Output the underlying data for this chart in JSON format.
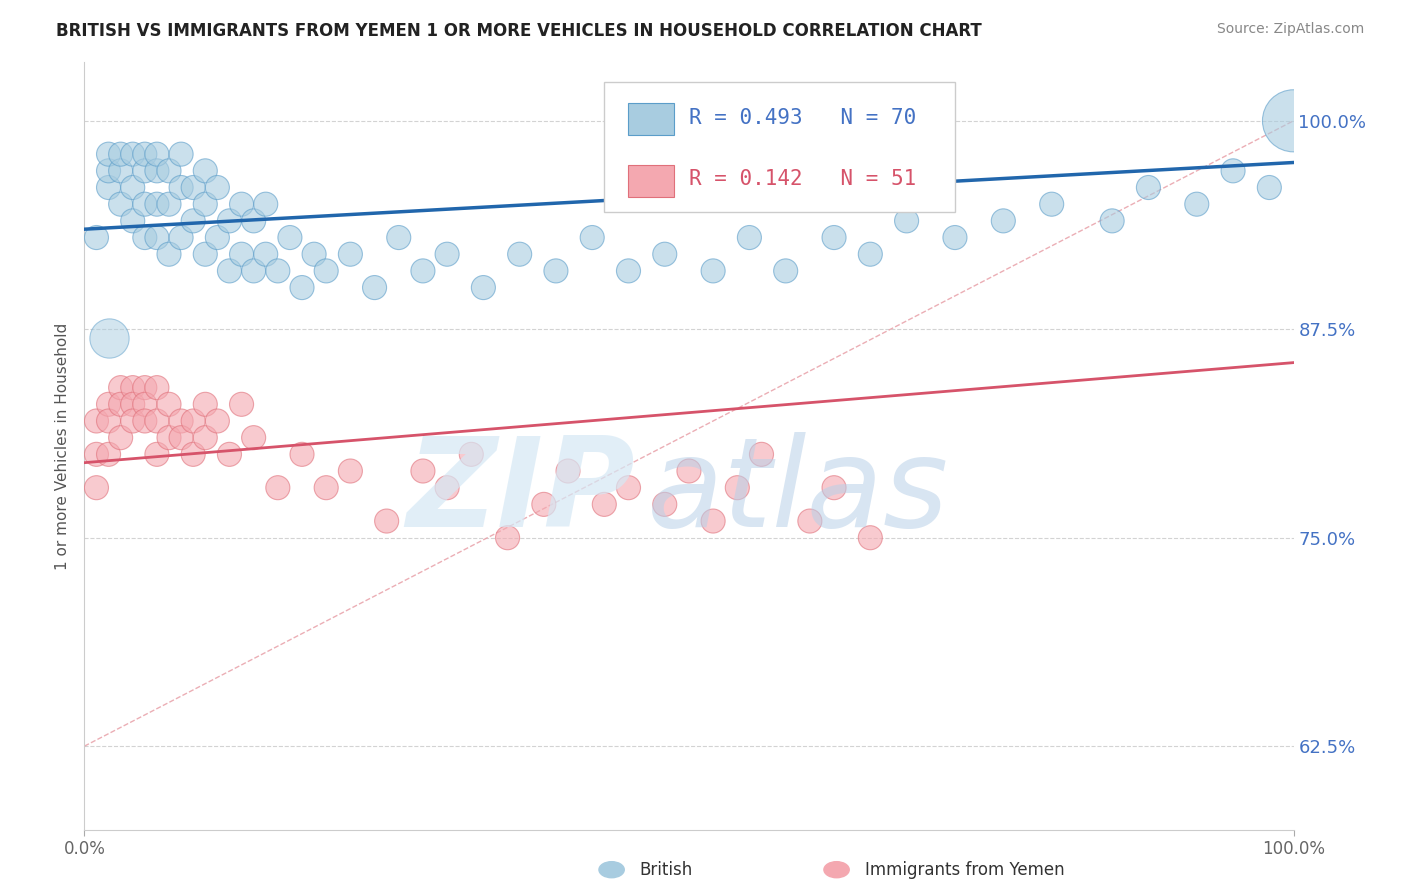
{
  "title": "BRITISH VS IMMIGRANTS FROM YEMEN 1 OR MORE VEHICLES IN HOUSEHOLD CORRELATION CHART",
  "source": "Source: ZipAtlas.com",
  "ylabel": "1 or more Vehicles in Household",
  "xlim": [
    0.0,
    1.0
  ],
  "ylim": [
    0.575,
    1.035
  ],
  "yticks": [
    0.625,
    0.75,
    0.875,
    1.0
  ],
  "ytick_labels": [
    "62.5%",
    "75.0%",
    "87.5%",
    "100.0%"
  ],
  "legend_r_blue": "R = 0.493",
  "legend_n_blue": "N = 70",
  "legend_r_pink": "R = 0.142",
  "legend_n_pink": "N = 51",
  "blue_color": "#a8cce0",
  "pink_color": "#f4a8b0",
  "blue_edge": "#5b9dc9",
  "pink_edge": "#e0707a",
  "blue_line_color": "#2166ac",
  "pink_line_color": "#d6536a",
  "ref_line_color": "#e8a0a8",
  "grid_color": "#c8c8c8",
  "title_color": "#222222",
  "source_color": "#888888",
  "tick_color_y": "#4472c4",
  "tick_color_x": "#666666",
  "british_x": [
    0.01,
    0.02,
    0.02,
    0.02,
    0.03,
    0.03,
    0.03,
    0.04,
    0.04,
    0.04,
    0.05,
    0.05,
    0.05,
    0.05,
    0.06,
    0.06,
    0.06,
    0.06,
    0.07,
    0.07,
    0.07,
    0.08,
    0.08,
    0.08,
    0.09,
    0.09,
    0.1,
    0.1,
    0.1,
    0.11,
    0.11,
    0.12,
    0.12,
    0.13,
    0.13,
    0.14,
    0.14,
    0.15,
    0.15,
    0.16,
    0.17,
    0.18,
    0.19,
    0.2,
    0.22,
    0.24,
    0.26,
    0.28,
    0.3,
    0.33,
    0.36,
    0.39,
    0.42,
    0.45,
    0.48,
    0.52,
    0.55,
    0.58,
    0.62,
    0.65,
    0.68,
    0.72,
    0.76,
    0.8,
    0.85,
    0.88,
    0.92,
    0.95,
    0.98,
    1.0
  ],
  "british_y": [
    0.93,
    0.96,
    0.97,
    0.98,
    0.95,
    0.97,
    0.98,
    0.94,
    0.96,
    0.98,
    0.93,
    0.95,
    0.97,
    0.98,
    0.93,
    0.95,
    0.97,
    0.98,
    0.92,
    0.95,
    0.97,
    0.93,
    0.96,
    0.98,
    0.94,
    0.96,
    0.92,
    0.95,
    0.97,
    0.93,
    0.96,
    0.91,
    0.94,
    0.92,
    0.95,
    0.91,
    0.94,
    0.92,
    0.95,
    0.91,
    0.93,
    0.9,
    0.92,
    0.91,
    0.92,
    0.9,
    0.93,
    0.91,
    0.92,
    0.9,
    0.92,
    0.91,
    0.93,
    0.91,
    0.92,
    0.91,
    0.93,
    0.91,
    0.93,
    0.92,
    0.94,
    0.93,
    0.94,
    0.95,
    0.94,
    0.96,
    0.95,
    0.97,
    0.96,
    1.0
  ],
  "british_sizes": [
    30,
    30,
    30,
    30,
    30,
    30,
    30,
    30,
    30,
    30,
    30,
    30,
    30,
    30,
    30,
    30,
    30,
    30,
    30,
    30,
    30,
    30,
    30,
    30,
    30,
    30,
    30,
    30,
    30,
    30,
    30,
    30,
    30,
    30,
    30,
    30,
    30,
    30,
    30,
    30,
    30,
    30,
    30,
    30,
    30,
    30,
    30,
    30,
    30,
    30,
    30,
    30,
    30,
    30,
    30,
    30,
    30,
    30,
    30,
    30,
    30,
    30,
    30,
    30,
    30,
    30,
    30,
    30,
    30,
    200
  ],
  "yemen_x": [
    0.01,
    0.01,
    0.01,
    0.02,
    0.02,
    0.02,
    0.03,
    0.03,
    0.03,
    0.04,
    0.04,
    0.04,
    0.05,
    0.05,
    0.05,
    0.06,
    0.06,
    0.06,
    0.07,
    0.07,
    0.08,
    0.08,
    0.09,
    0.09,
    0.1,
    0.1,
    0.11,
    0.12,
    0.13,
    0.14,
    0.16,
    0.18,
    0.2,
    0.22,
    0.25,
    0.28,
    0.3,
    0.32,
    0.35,
    0.38,
    0.4,
    0.43,
    0.45,
    0.48,
    0.5,
    0.52,
    0.54,
    0.56,
    0.6,
    0.62,
    0.65
  ],
  "yemen_y": [
    0.82,
    0.8,
    0.78,
    0.83,
    0.82,
    0.8,
    0.84,
    0.83,
    0.81,
    0.84,
    0.83,
    0.82,
    0.84,
    0.83,
    0.82,
    0.84,
    0.82,
    0.8,
    0.83,
    0.81,
    0.82,
    0.81,
    0.82,
    0.8,
    0.83,
    0.81,
    0.82,
    0.8,
    0.83,
    0.81,
    0.78,
    0.8,
    0.78,
    0.79,
    0.76,
    0.79,
    0.78,
    0.8,
    0.75,
    0.77,
    0.79,
    0.77,
    0.78,
    0.77,
    0.79,
    0.76,
    0.78,
    0.8,
    0.76,
    0.78,
    0.75
  ],
  "yemen_sizes": [
    30,
    30,
    30,
    30,
    30,
    30,
    30,
    30,
    30,
    30,
    30,
    30,
    30,
    30,
    30,
    30,
    30,
    30,
    30,
    30,
    30,
    30,
    30,
    30,
    30,
    30,
    30,
    30,
    30,
    30,
    30,
    30,
    30,
    30,
    30,
    30,
    30,
    30,
    30,
    30,
    30,
    30,
    30,
    30,
    30,
    30,
    30,
    30,
    30,
    30,
    30
  ]
}
